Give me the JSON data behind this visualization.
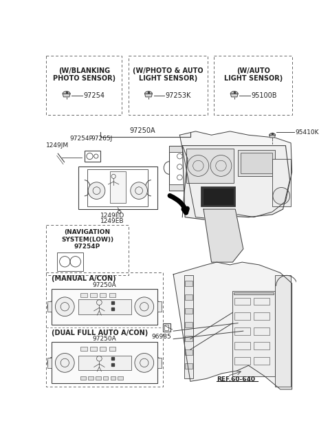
{
  "bg_color": "#ffffff",
  "lc": "#404040",
  "tc": "#202020",
  "gray_fill": "#e8e8e8",
  "light_gray": "#f0f0f0",
  "dark_gray": "#555555",
  "top_boxes": [
    {
      "label": "(W/BLANKING\nPHOTO SENSOR)",
      "part": "97254"
    },
    {
      "label": "(W/PHOTO & AUTO\nLIGHT SENSOR)",
      "part": "97253K"
    },
    {
      "label": "(W/AUTO\nLIGHT SENSOR)",
      "part": "95100B"
    }
  ]
}
